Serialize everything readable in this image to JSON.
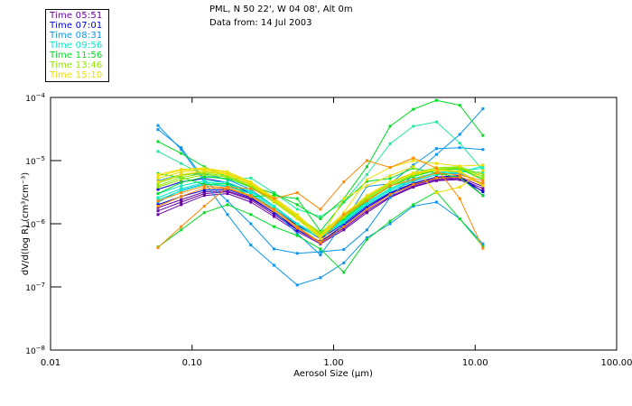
{
  "header": {
    "line1": "PML, N 50 22', W 04 08', Alt 0m",
    "line2": "Data from: 14 Jul 2003"
  },
  "legend": [
    {
      "label": "Time 05:51",
      "color": "#6a00a8"
    },
    {
      "label": "Time 07:01",
      "color": "#0000dd"
    },
    {
      "label": "Time 08:31",
      "color": "#0a96ee"
    },
    {
      "label": "Time 09:56",
      "color": "#00eec8"
    },
    {
      "label": "Time 11:56",
      "color": "#00dd22"
    },
    {
      "label": "Time 13:46",
      "color": "#8ee600"
    },
    {
      "label": "Time 15:10",
      "color": "#eedd00"
    }
  ],
  "chart_data": {
    "type": "line",
    "title": "PML, N 50 22', W 04 08', Alt 0m",
    "subtitle": "Data from: 14 Jul 2003",
    "xlabel": "Aerosol Size (µm)",
    "ylabel": "dV/d(log R) (cm³/cm⁻³)",
    "xscale": "log",
    "yscale": "log",
    "xlim": [
      0.01,
      100
    ],
    "ylim": [
      1e-08,
      0.0001
    ],
    "xticks": [
      {
        "value": 0.01,
        "label": "0.01"
      },
      {
        "value": 0.1,
        "label": "0.10"
      },
      {
        "value": 1,
        "label": "1.00"
      },
      {
        "value": 10,
        "label": "10.00"
      },
      {
        "value": 100,
        "label": "100.00"
      }
    ],
    "yticks": [
      {
        "value": 0.0001,
        "base": "10",
        "exp": "-4"
      },
      {
        "value": 1e-05,
        "base": "10",
        "exp": "-5"
      },
      {
        "value": 1e-06,
        "base": "10",
        "exp": "-6"
      },
      {
        "value": 1e-07,
        "base": "10",
        "exp": "-7"
      },
      {
        "value": 1e-08,
        "base": "10",
        "exp": "-8"
      }
    ],
    "grid": false,
    "legend_position": "top-left (outside plot)",
    "x": [
      0.0574,
      0.0838,
      0.122,
      0.178,
      0.26,
      0.379,
      0.553,
      0.807,
      1.18,
      1.72,
      2.51,
      3.66,
      5.33,
      7.78,
      11.35
    ],
    "series": [
      {
        "name": "Time 05:51",
        "color": "#6a00a8",
        "values": [
          1.6e-06,
          2.2e-06,
          3e-06,
          3.2e-06,
          2.4e-06,
          1.4e-06,
          8e-07,
          5e-07,
          8.5e-07,
          1.6e-06,
          2.7e-06,
          3.9e-06,
          4.9e-06,
          5.2e-06,
          3.6e-06
        ]
      },
      {
        "name": "Time 05:51",
        "color": "#6a00a8",
        "values": [
          1.4e-06,
          2e-06,
          2.8e-06,
          3e-06,
          2.2e-06,
          1.3e-06,
          7.5e-07,
          4.8e-07,
          8e-07,
          1.5e-06,
          2.6e-06,
          3.8e-06,
          4.8e-06,
          5e-06,
          3.3e-06
        ]
      },
      {
        "name": "Time 05:51",
        "color": "#6a00a8",
        "values": [
          1.8e-06,
          2.4e-06,
          3.2e-06,
          3.3e-06,
          2.5e-06,
          1.5e-06,
          8.5e-07,
          5.2e-07,
          9e-07,
          1.7e-06,
          2.9e-06,
          4.1e-06,
          5.1e-06,
          5.4e-06,
          3.9e-06
        ]
      },
      {
        "name": "Time 07:01",
        "color": "#0000dd",
        "values": [
          2e-06,
          2.7e-06,
          3.4e-06,
          3.5e-06,
          2.6e-06,
          1.5e-06,
          8e-07,
          5.2e-07,
          9.5e-07,
          1.8e-06,
          3e-06,
          4.3e-06,
          5.3e-06,
          5.6e-06,
          3.2e-06
        ]
      },
      {
        "name": "Time 07:01",
        "color": "#0000dd",
        "values": [
          3.5e-06,
          4.6e-06,
          5.2e-06,
          4.5e-06,
          3e-06,
          1.7e-06,
          9.5e-07,
          5.8e-07,
          1e-06,
          1.9e-06,
          3.1e-06,
          4.4e-06,
          5.5e-06,
          5.8e-06,
          2.8e-06
        ]
      },
      {
        "name": "Time 08:31",
        "color": "#0a96ee",
        "values": [
          3.6e-05,
          1.5e-05,
          4.6e-06,
          1.4e-06,
          4.6e-07,
          2.2e-07,
          1.07e-07,
          1.4e-07,
          2.4e-07,
          6e-07,
          1e-06,
          1.9e-06,
          2.2e-06,
          1.2e-06,
          4.8e-07
        ]
      },
      {
        "name": "Time 08:31",
        "color": "#0a96ee",
        "values": [
          3.1e-05,
          1.6e-05,
          5e-06,
          2.3e-06,
          1e-06,
          4e-07,
          3.4e-07,
          3.6e-07,
          3.9e-07,
          8e-07,
          2.6e-06,
          6e-06,
          1.25e-05,
          2.6e-05,
          6.6e-05
        ]
      },
      {
        "name": "Time 08:31",
        "color": "#0a96ee",
        "values": [
          2.2e-06,
          3.4e-06,
          4.3e-06,
          3.9e-06,
          3e-06,
          1.6e-06,
          7e-07,
          3.2e-07,
          1.05e-06,
          3.9e-06,
          4.3e-06,
          8.5e-06,
          1.55e-05,
          1.6e-05,
          1.5e-05
        ]
      },
      {
        "name": "Time 08:31",
        "color": "#0a96ee",
        "values": [
          4.8e-06,
          6e-06,
          6.2e-06,
          5e-06,
          3.5e-06,
          1.9e-06,
          1e-06,
          6.2e-07,
          1.1e-06,
          2e-06,
          3.3e-06,
          4.7e-06,
          6e-06,
          6.3e-06,
          4.3e-06
        ]
      },
      {
        "name": "Time 09:56",
        "color": "#00eec8",
        "values": [
          2.6e-06,
          3.6e-06,
          4.5e-06,
          4.3e-06,
          3.2e-06,
          1.8e-06,
          9.8e-07,
          6.2e-07,
          1.1e-06,
          2.1e-06,
          3.5e-06,
          5e-06,
          6.3e-06,
          6.7e-06,
          6.5e-06
        ]
      },
      {
        "name": "Time 09:56",
        "color": "#00eec8",
        "values": [
          3e-06,
          4e-06,
          4.8e-06,
          4.5e-06,
          3.3e-06,
          1.9e-06,
          1e-06,
          6.4e-07,
          1.15e-06,
          2.2e-06,
          3.6e-06,
          5.2e-06,
          6.5e-06,
          7e-06,
          7.5e-06
        ]
      },
      {
        "name": "Time 09:56",
        "color": "#00eec8",
        "values": [
          2.4e-06,
          3.3e-06,
          4.2e-06,
          4e-06,
          3e-06,
          1.7e-06,
          9e-07,
          6e-07,
          1.05e-06,
          2e-06,
          3.3e-06,
          4.8e-06,
          6e-06,
          6.5e-06,
          8.2e-06
        ]
      },
      {
        "name": "Time 09:56",
        "color": "#22e89a",
        "values": [
          1.4e-05,
          9e-06,
          5.8e-06,
          5e-06,
          5.3e-06,
          3.1e-06,
          1.7e-06,
          1.3e-06,
          2.2e-06,
          6e-06,
          1.85e-05,
          3.5e-05,
          4.1e-05,
          1.9e-05,
          7e-06
        ]
      },
      {
        "name": "Time 11:56",
        "color": "#00dd22",
        "values": [
          2e-05,
          1.3e-05,
          8e-06,
          5.5e-06,
          4e-06,
          3e-06,
          2e-06,
          1.2e-06,
          2.5e-06,
          8e-06,
          3.5e-05,
          6.5e-05,
          9e-05,
          7.5e-05,
          2.5e-05
        ]
      },
      {
        "name": "Time 11:56",
        "color": "#00dd22",
        "values": [
          3e-06,
          4.5e-06,
          5.5e-06,
          5.2e-06,
          3.8e-06,
          2.2e-06,
          1.2e-06,
          6.7e-07,
          1.2e-06,
          2.3e-06,
          3.9e-06,
          5.6e-06,
          7e-06,
          7.4e-06,
          5e-06
        ]
      },
      {
        "name": "Time 11:56",
        "color": "#00dd22",
        "values": [
          4.3e-07,
          8e-07,
          1.5e-06,
          2e-06,
          1.4e-06,
          9e-07,
          6.5e-07,
          4e-07,
          1.7e-07,
          5.6e-07,
          1.1e-06,
          2e-06,
          3.2e-06,
          1.2e-06,
          4.4e-07
        ]
      },
      {
        "name": "Time 11:56",
        "color": "#00dd22",
        "values": [
          6.2e-06,
          5.4e-06,
          4.2e-06,
          4.3e-06,
          2.7e-06,
          2.8e-06,
          2.5e-06,
          7.6e-07,
          2.2e-06,
          4.7e-06,
          5.2e-06,
          7.6e-06,
          6.3e-06,
          5.4e-06,
          2.8e-06
        ]
      },
      {
        "name": "Time 13:46",
        "color": "#8ee600",
        "values": [
          4e-06,
          5.4e-06,
          6.3e-06,
          5.7e-06,
          4e-06,
          2.3e-06,
          1.25e-06,
          7e-07,
          1.3e-06,
          2.5e-06,
          4.2e-06,
          6e-06,
          7.4e-06,
          7.8e-06,
          5.6e-06
        ]
      },
      {
        "name": "Time 13:46",
        "color": "#8ee600",
        "values": [
          3.8e-06,
          5e-06,
          6e-06,
          5.5e-06,
          3.9e-06,
          2.2e-06,
          1.2e-06,
          6.8e-07,
          1.25e-06,
          2.4e-06,
          4e-06,
          5.8e-06,
          7.2e-06,
          7.6e-06,
          5.2e-06
        ]
      },
      {
        "name": "Time 13:46",
        "color": "#8ee600",
        "values": [
          4.4e-06,
          5.8e-06,
          6.6e-06,
          6e-06,
          4.2e-06,
          2.4e-06,
          1.3e-06,
          7.3e-07,
          1.35e-06,
          2.6e-06,
          4.4e-06,
          6.3e-06,
          7.7e-06,
          8e-06,
          6e-06
        ]
      },
      {
        "name": "Time 15:10",
        "color": "#eedd00",
        "values": [
          5.7e-06,
          7e-06,
          7.4e-06,
          6.5e-06,
          4.5e-06,
          2.5e-06,
          1.35e-06,
          6.3e-07,
          1.4e-06,
          2.8e-06,
          4.6e-06,
          6.4e-06,
          7.2e-06,
          6.8e-06,
          4.1e-06
        ]
      },
      {
        "name": "Time 15:10",
        "color": "#eedd00",
        "values": [
          5.2e-06,
          6.6e-06,
          7.1e-06,
          6.2e-06,
          4.4e-06,
          2.4e-06,
          1.3e-06,
          6e-07,
          1.35e-06,
          2.7e-06,
          4.5e-06,
          6.2e-06,
          7e-06,
          6.6e-06,
          4e-06
        ]
      },
      {
        "name": "Time 15:10",
        "color": "#eedd00",
        "values": [
          4.6e-06,
          6e-06,
          6.8e-06,
          6e-06,
          4.2e-06,
          2.3e-06,
          1.2e-06,
          5.8e-07,
          2.5e-06,
          4e-06,
          5.8e-06,
          8e-06,
          3.1e-06,
          3.8e-06,
          7e-06
        ]
      },
      {
        "name": "Time 15:10",
        "color": "#eedd00",
        "values": [
          6e-06,
          7.3e-06,
          7.6e-06,
          6.7e-06,
          4.6e-06,
          2.6e-06,
          1.4e-06,
          6.5e-07,
          1.5e-06,
          5e-06,
          7.8e-06,
          1e-05,
          9e-06,
          8.2e-06,
          8.5e-06
        ]
      },
      {
        "name": "Time 15:10",
        "color": "#ff8800",
        "values": [
          1.9e-06,
          2.7e-06,
          3.7e-06,
          3.6e-06,
          2.7e-06,
          1.6e-06,
          8.5e-07,
          5e-07,
          9e-07,
          1.7e-06,
          2.9e-06,
          4.2e-06,
          5.3e-06,
          5.5e-06,
          4.4e-06
        ]
      },
      {
        "name": "Time 15:10",
        "color": "#ff8800",
        "values": [
          4.2e-07,
          9e-07,
          1.9e-06,
          3.8e-06,
          3.6e-06,
          2.5e-06,
          3.1e-06,
          1.7e-06,
          4.6e-06,
          1e-05,
          7.8e-06,
          1.1e-05,
          7.6e-06,
          2.5e-06,
          4.1e-07
        ]
      },
      {
        "name": "Time 15:10",
        "color": "#ff8800",
        "values": [
          2.3e-06,
          3.1e-06,
          4e-06,
          3.7e-06,
          2.8e-06,
          1.7e-06,
          9e-07,
          5.1e-07,
          1.4e-06,
          2.3e-06,
          4e-06,
          5e-06,
          6.4e-06,
          5.9e-06,
          4.8e-06
        ]
      }
    ]
  }
}
